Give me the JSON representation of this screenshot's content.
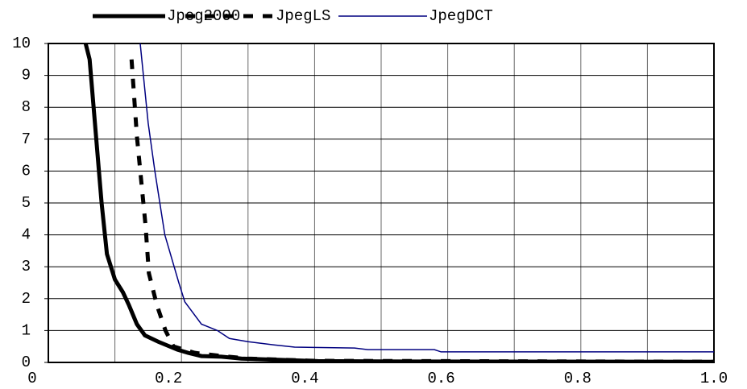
{
  "chart_data": {
    "type": "line",
    "series": [
      {
        "name": "Jpeg2000",
        "color": "#000000",
        "style": "solid",
        "width": 5,
        "x": [
          0.056,
          0.062,
          0.072,
          0.08,
          0.088,
          0.1,
          0.112,
          0.121,
          0.133,
          0.145,
          0.165,
          0.194,
          0.21,
          0.23,
          0.26,
          0.29,
          0.35,
          0.405,
          0.5,
          1.0
        ],
        "values": [
          10,
          9.5,
          7,
          5,
          3.4,
          2.6,
          2.2,
          1.8,
          1.2,
          0.85,
          0.65,
          0.4,
          0.3,
          0.2,
          0.18,
          0.12,
          0.08,
          0.04,
          0.03,
          0.02
        ]
      },
      {
        "name": "JpegLS",
        "color": "#000000",
        "style": "dashed",
        "width": 5,
        "x": [
          0.125,
          0.133,
          0.146,
          0.151,
          0.163,
          0.176,
          0.188,
          0.22,
          0.26,
          0.3,
          0.4,
          1.0
        ],
        "values": [
          9.5,
          7.1,
          4.3,
          2.8,
          1.8,
          1.0,
          0.5,
          0.3,
          0.2,
          0.12,
          0.05,
          0.02
        ]
      },
      {
        "name": "JpegDCT",
        "color": "#000080",
        "style": "solid",
        "width": 1.5,
        "x": [
          0.138,
          0.15,
          0.16,
          0.175,
          0.196,
          0.205,
          0.23,
          0.254,
          0.272,
          0.3,
          0.339,
          0.37,
          0.46,
          0.48,
          0.58,
          0.59,
          1.0
        ],
        "values": [
          10,
          7.5,
          6,
          4,
          2.5,
          1.9,
          1.2,
          1.0,
          0.75,
          0.65,
          0.55,
          0.48,
          0.45,
          0.4,
          0.4,
          0.33,
          0.33
        ]
      }
    ],
    "xlim": [
      0,
      1
    ],
    "xticks": [
      0,
      0.2,
      0.4,
      0.6,
      0.8,
      {
        "value": 1,
        "label": "1.0"
      }
    ],
    "ylim": [
      0,
      10
    ],
    "yticks": [
      0,
      1,
      2,
      3,
      4,
      5,
      6,
      7,
      8,
      9,
      10
    ],
    "grid": true,
    "legend": "top"
  }
}
